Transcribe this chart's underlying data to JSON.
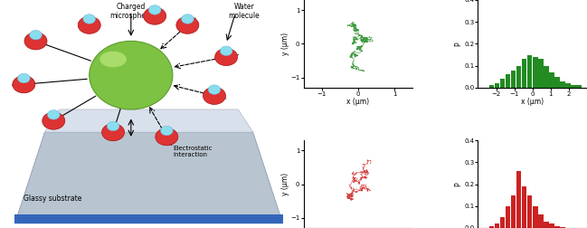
{
  "green_color": "#228B22",
  "red_color": "#CC2222",
  "green_track_seed": 42,
  "red_track_seed": 99,
  "n_steps_green": 800,
  "n_steps_red": 400,
  "green_sigma": 0.045,
  "red_sigma": 0.03,
  "green_hist_values": [
    0.0,
    0.0,
    0.01,
    0.02,
    0.04,
    0.06,
    0.08,
    0.1,
    0.13,
    0.15,
    0.14,
    0.13,
    0.1,
    0.07,
    0.05,
    0.03,
    0.02,
    0.01,
    0.01,
    0.0
  ],
  "red_hist_values": [
    0.0,
    0.0,
    0.01,
    0.02,
    0.05,
    0.1,
    0.15,
    0.26,
    0.19,
    0.15,
    0.1,
    0.06,
    0.03,
    0.02,
    0.01,
    0.005,
    0.0,
    0.0,
    0.0,
    0.0
  ],
  "hist_bins": [
    -3.0,
    -2.7,
    -2.4,
    -2.1,
    -1.8,
    -1.5,
    -1.2,
    -0.9,
    -0.6,
    -0.3,
    0.0,
    0.3,
    0.6,
    0.9,
    1.2,
    1.5,
    1.8,
    2.1,
    2.4,
    2.7,
    3.0
  ],
  "track_xlim": [
    -1.5,
    1.5
  ],
  "hist_xlim": [
    -3,
    3
  ],
  "hist_ylim": [
    0,
    0.4
  ],
  "xlabel_track": "x (μm)",
  "ylabel_track": "y (μm)",
  "xlabel_hist": "x (μm)",
  "ylabel_hist": "P",
  "hist_yticks": [
    0.0,
    0.1,
    0.2,
    0.3,
    0.4
  ],
  "track_xticks": [
    -1,
    0,
    1
  ],
  "track_yticks": [
    -1,
    0,
    1
  ],
  "hist_xticks": [
    -2,
    -1,
    0,
    1,
    2
  ],
  "fig_bg": "#ffffff"
}
